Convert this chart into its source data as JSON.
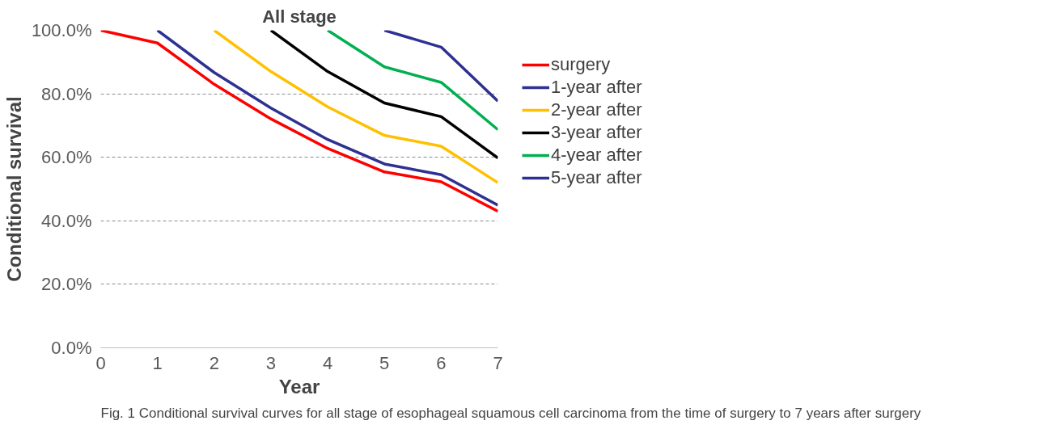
{
  "chart_data": {
    "type": "line",
    "title": "All stage",
    "xlabel": "Year",
    "ylabel": "Conditional survival",
    "xlim": [
      0,
      7
    ],
    "xticks": [
      0,
      1,
      2,
      3,
      4,
      5,
      6,
      7
    ],
    "ylim": [
      0,
      100
    ],
    "yticks": [
      {
        "value": 0,
        "label": "0.0%"
      },
      {
        "value": 20,
        "label": "20.0%"
      },
      {
        "value": 40,
        "label": "40.0%"
      },
      {
        "value": 60,
        "label": "60.0%"
      },
      {
        "value": 80,
        "label": "80.0%"
      },
      {
        "value": 100,
        "label": "100.0%"
      }
    ],
    "grid": "y",
    "legend": "right",
    "line_style": "solid",
    "series": [
      {
        "name": "surgery",
        "color": "#ff0000",
        "x": [
          0,
          1,
          2,
          3,
          4,
          5,
          6,
          7
        ],
        "values": [
          100,
          96.0,
          83.0,
          72.1,
          62.8,
          55.4,
          52.3,
          43.0
        ]
      },
      {
        "name": "1-year after",
        "color": "#2e3192",
        "x": [
          1,
          2,
          3,
          4,
          5,
          6,
          7
        ],
        "values": [
          100,
          86.7,
          75.5,
          65.6,
          57.9,
          54.5,
          44.9
        ]
      },
      {
        "name": "2-year after",
        "color": "#ffc000",
        "x": [
          2,
          3,
          4,
          5,
          6,
          7
        ],
        "values": [
          100,
          87.0,
          75.9,
          66.9,
          63.5,
          52.0
        ]
      },
      {
        "name": "3-year after",
        "color": "#000000",
        "x": [
          3,
          4,
          5,
          6,
          7
        ],
        "values": [
          100,
          87.0,
          77.1,
          72.8,
          59.8
        ]
      },
      {
        "name": "4-year after",
        "color": "#00b050",
        "x": [
          4,
          5,
          6,
          7
        ],
        "values": [
          100,
          88.5,
          83.6,
          68.7
        ]
      },
      {
        "name": "5-year after",
        "color": "#2e3192",
        "x": [
          5,
          6,
          7
        ],
        "values": [
          100,
          94.7,
          77.7
        ]
      }
    ],
    "annotations": [
      "Fig. 1  Conditional survival curves for all stage of esophageal squamous cell carcinoma from the time of surgery to 7 years after surgery"
    ]
  }
}
